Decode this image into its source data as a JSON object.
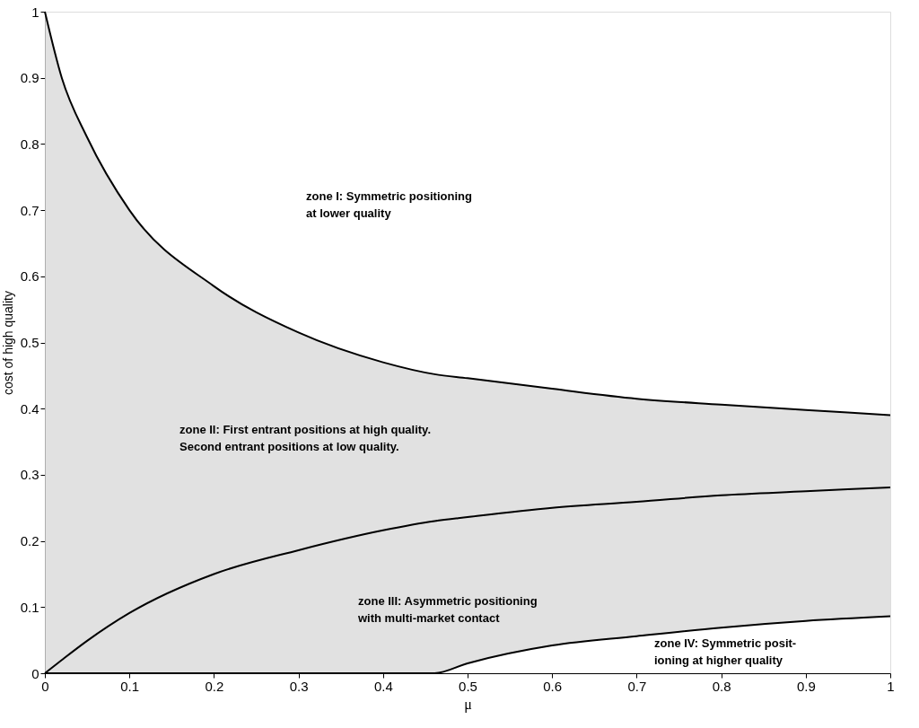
{
  "chart_data": {
    "type": "line",
    "xlabel": "μ",
    "ylabel": "cost of high quality",
    "x": [
      0,
      0.02,
      0.05,
      0.1,
      0.2,
      0.3,
      0.4,
      0.461,
      0.5,
      0.6,
      0.7,
      0.8,
      0.9,
      1
    ],
    "series": [
      {
        "color": "#000000",
        "values": [
          1,
          0.9,
          0.81,
          0.7,
          0.585,
          0.515,
          0.47,
          0.452,
          0.446,
          0.43,
          0.415,
          0.406,
          0.398,
          0.39
        ],
        "lower": [
          0,
          0,
          0,
          0,
          0,
          0,
          0,
          0,
          0.015,
          0.042,
          0.056,
          0.069,
          0.079,
          0.086
        ],
        "upper": [
          1,
          0.9,
          0.81,
          0.7,
          0.585,
          0.515,
          0.47,
          0.452,
          0.446,
          0.43,
          0.415,
          0.406,
          0.398,
          0.39
        ]
      },
      {
        "color": "#000000",
        "values": [
          0,
          0.02,
          0.049,
          0.091,
          0.15,
          0.186,
          0.216,
          0.23,
          0.236,
          0.25,
          0.259,
          0.269,
          0.275,
          0.281
        ]
      },
      {
        "color": "#000000",
        "values": [
          0,
          0,
          0,
          0,
          0,
          0,
          0,
          0,
          0.015,
          0.042,
          0.056,
          0.069,
          0.079,
          0.086
        ]
      }
    ],
    "xlim": [
      0,
      1
    ],
    "ylim": [
      0,
      1
    ],
    "xticks": [
      0,
      0.1,
      0.2,
      0.3,
      0.4,
      0.5,
      0.6,
      0.7,
      0.8,
      0.9,
      1
    ],
    "yticks": [
      0,
      0.1,
      0.2,
      0.3,
      0.4,
      0.5,
      0.6,
      0.7,
      0.8,
      0.9,
      1
    ],
    "marker": "none",
    "line_style": "solid",
    "annotations": [
      "zone I: Symmetric positioning\nat lower quality",
      "zone II: First entrant positions at high quality.\nSecond entrant positions at low quality.",
      "zone III: Asymmetric positioning\nwith multi-market contact",
      "zone IV: Symmetric posit-\nioning at higher quality"
    ]
  }
}
